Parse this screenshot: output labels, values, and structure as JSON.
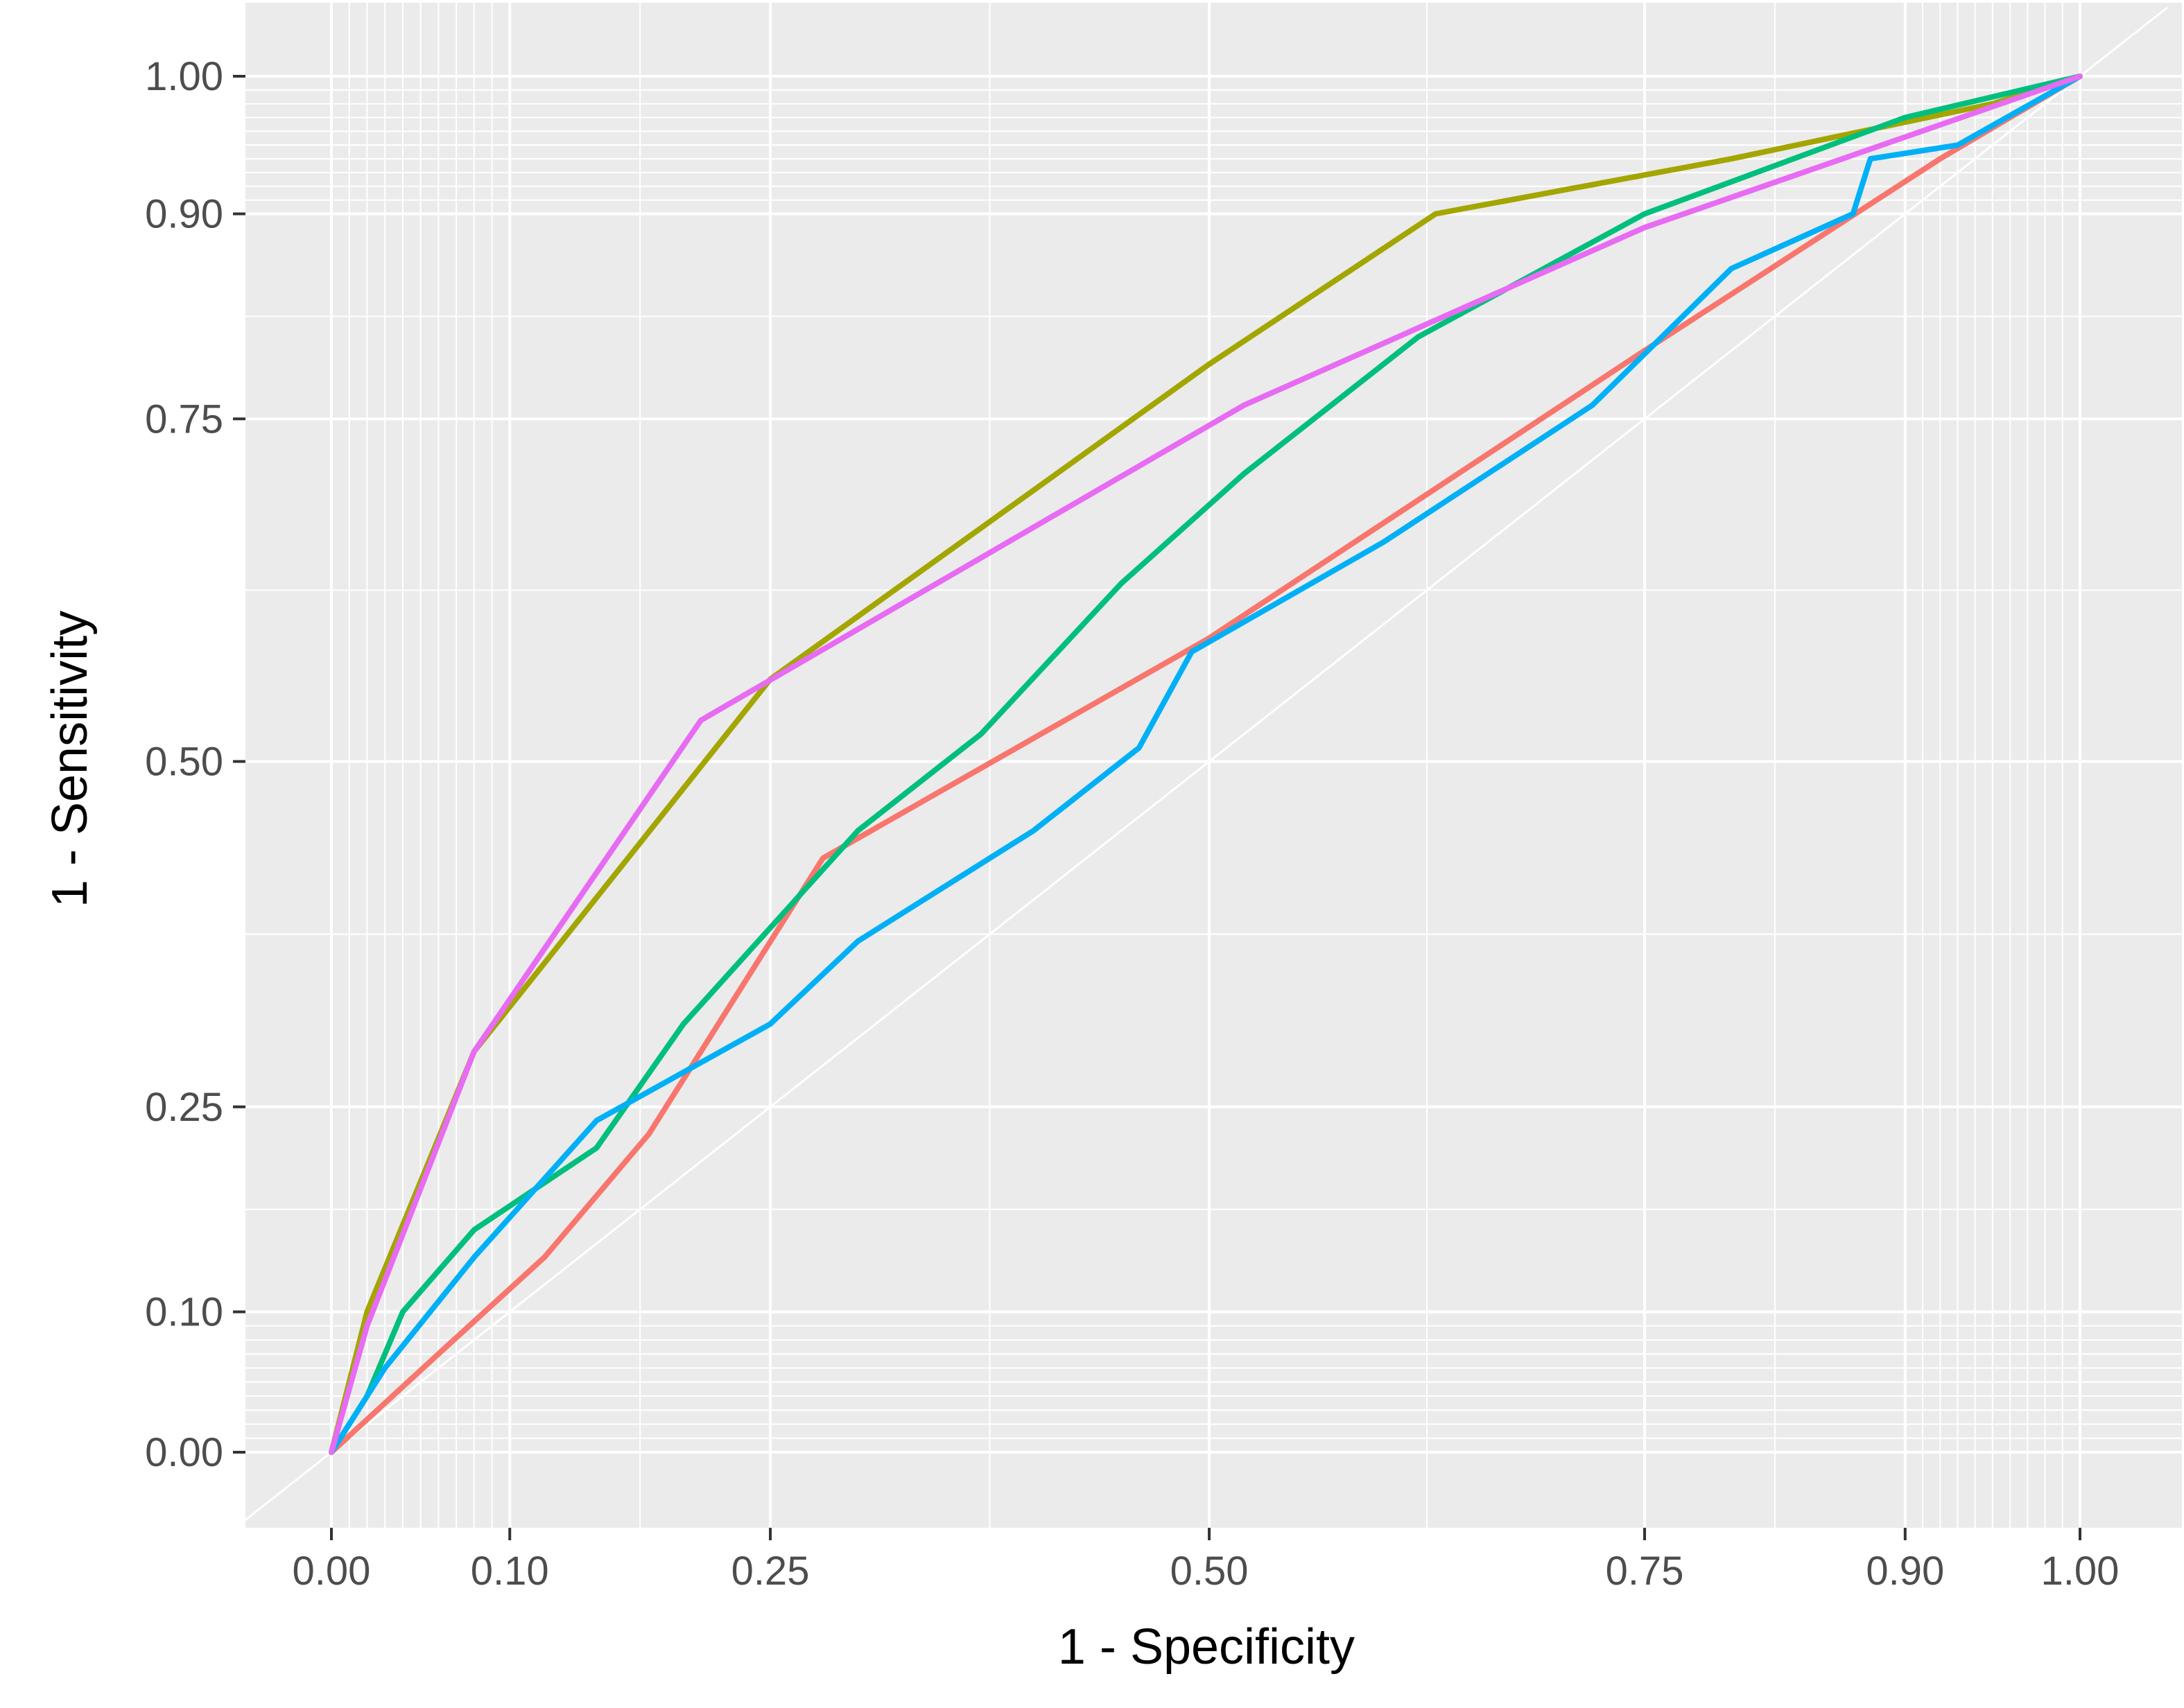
{
  "chart_data": {
    "type": "line",
    "title": "",
    "xlabel": "1 - Specificity",
    "ylabel": "1 - Sensitivity",
    "xlim": [
      -0.05,
      1.05
    ],
    "ylim": [
      -0.05,
      1.05
    ],
    "scale": "probability-transformed (ggplot2 style)",
    "x_ticks": [
      0.0,
      0.1,
      0.25,
      0.5,
      0.75,
      0.9,
      1.0
    ],
    "x_tick_labels": [
      "0.00",
      "0.10",
      "0.25",
      "0.50",
      "0.75",
      "0.90",
      "1.00"
    ],
    "y_ticks": [
      0.0,
      0.1,
      0.25,
      0.5,
      0.75,
      0.9,
      1.0
    ],
    "y_tick_labels": [
      "0.00",
      "0.10",
      "0.25",
      "0.50",
      "0.75",
      "0.90",
      "1.00"
    ],
    "grid": true,
    "legend": "none",
    "reference_line": {
      "from": [
        0,
        0
      ],
      "to": [
        1,
        1
      ],
      "color": "#ffffff"
    },
    "colors": {
      "panel_background": "#ebebeb",
      "grid_major": "#ffffff",
      "grid_minor": "#ffffff"
    },
    "series": [
      {
        "color": "#f8766d",
        "points": [
          [
            0,
            0
          ],
          [
            0.06,
            0.07
          ],
          [
            0.12,
            0.14
          ],
          [
            0.18,
            0.23
          ],
          [
            0.28,
            0.43
          ],
          [
            0.5,
            0.59
          ],
          [
            0.75,
            0.8
          ],
          [
            0.92,
            0.94
          ],
          [
            1,
            1
          ]
        ]
      },
      {
        "color": "#a3a500",
        "points": [
          [
            0,
            0
          ],
          [
            0.02,
            0.1
          ],
          [
            0.08,
            0.29
          ],
          [
            0.25,
            0.56
          ],
          [
            0.5,
            0.79
          ],
          [
            0.63,
            0.9
          ],
          [
            0.8,
            0.94
          ],
          [
            0.95,
            0.98
          ],
          [
            1,
            1
          ]
        ]
      },
      {
        "color": "#00bf7d",
        "points": [
          [
            0,
            0
          ],
          [
            0.02,
            0.04
          ],
          [
            0.04,
            0.1
          ],
          [
            0.08,
            0.16
          ],
          [
            0.15,
            0.22
          ],
          [
            0.2,
            0.31
          ],
          [
            0.3,
            0.45
          ],
          [
            0.37,
            0.52
          ],
          [
            0.45,
            0.63
          ],
          [
            0.52,
            0.71
          ],
          [
            0.62,
            0.81
          ],
          [
            0.75,
            0.9
          ],
          [
            0.9,
            0.97
          ],
          [
            1,
            1
          ]
        ]
      },
      {
        "color": "#00b0f6",
        "points": [
          [
            0,
            0
          ],
          [
            0.03,
            0.06
          ],
          [
            0.08,
            0.14
          ],
          [
            0.15,
            0.24
          ],
          [
            0.25,
            0.31
          ],
          [
            0.3,
            0.37
          ],
          [
            0.4,
            0.45
          ],
          [
            0.46,
            0.51
          ],
          [
            0.49,
            0.58
          ],
          [
            0.6,
            0.66
          ],
          [
            0.72,
            0.76
          ],
          [
            0.8,
            0.86
          ],
          [
            0.87,
            0.9
          ],
          [
            0.88,
            0.94
          ],
          [
            0.93,
            0.95
          ],
          [
            1,
            1
          ]
        ]
      },
      {
        "color": "#e76bf3",
        "points": [
          [
            0,
            0
          ],
          [
            0.02,
            0.09
          ],
          [
            0.08,
            0.29
          ],
          [
            0.21,
            0.53
          ],
          [
            0.52,
            0.76
          ],
          [
            0.75,
            0.89
          ],
          [
            1,
            1
          ]
        ]
      }
    ]
  }
}
